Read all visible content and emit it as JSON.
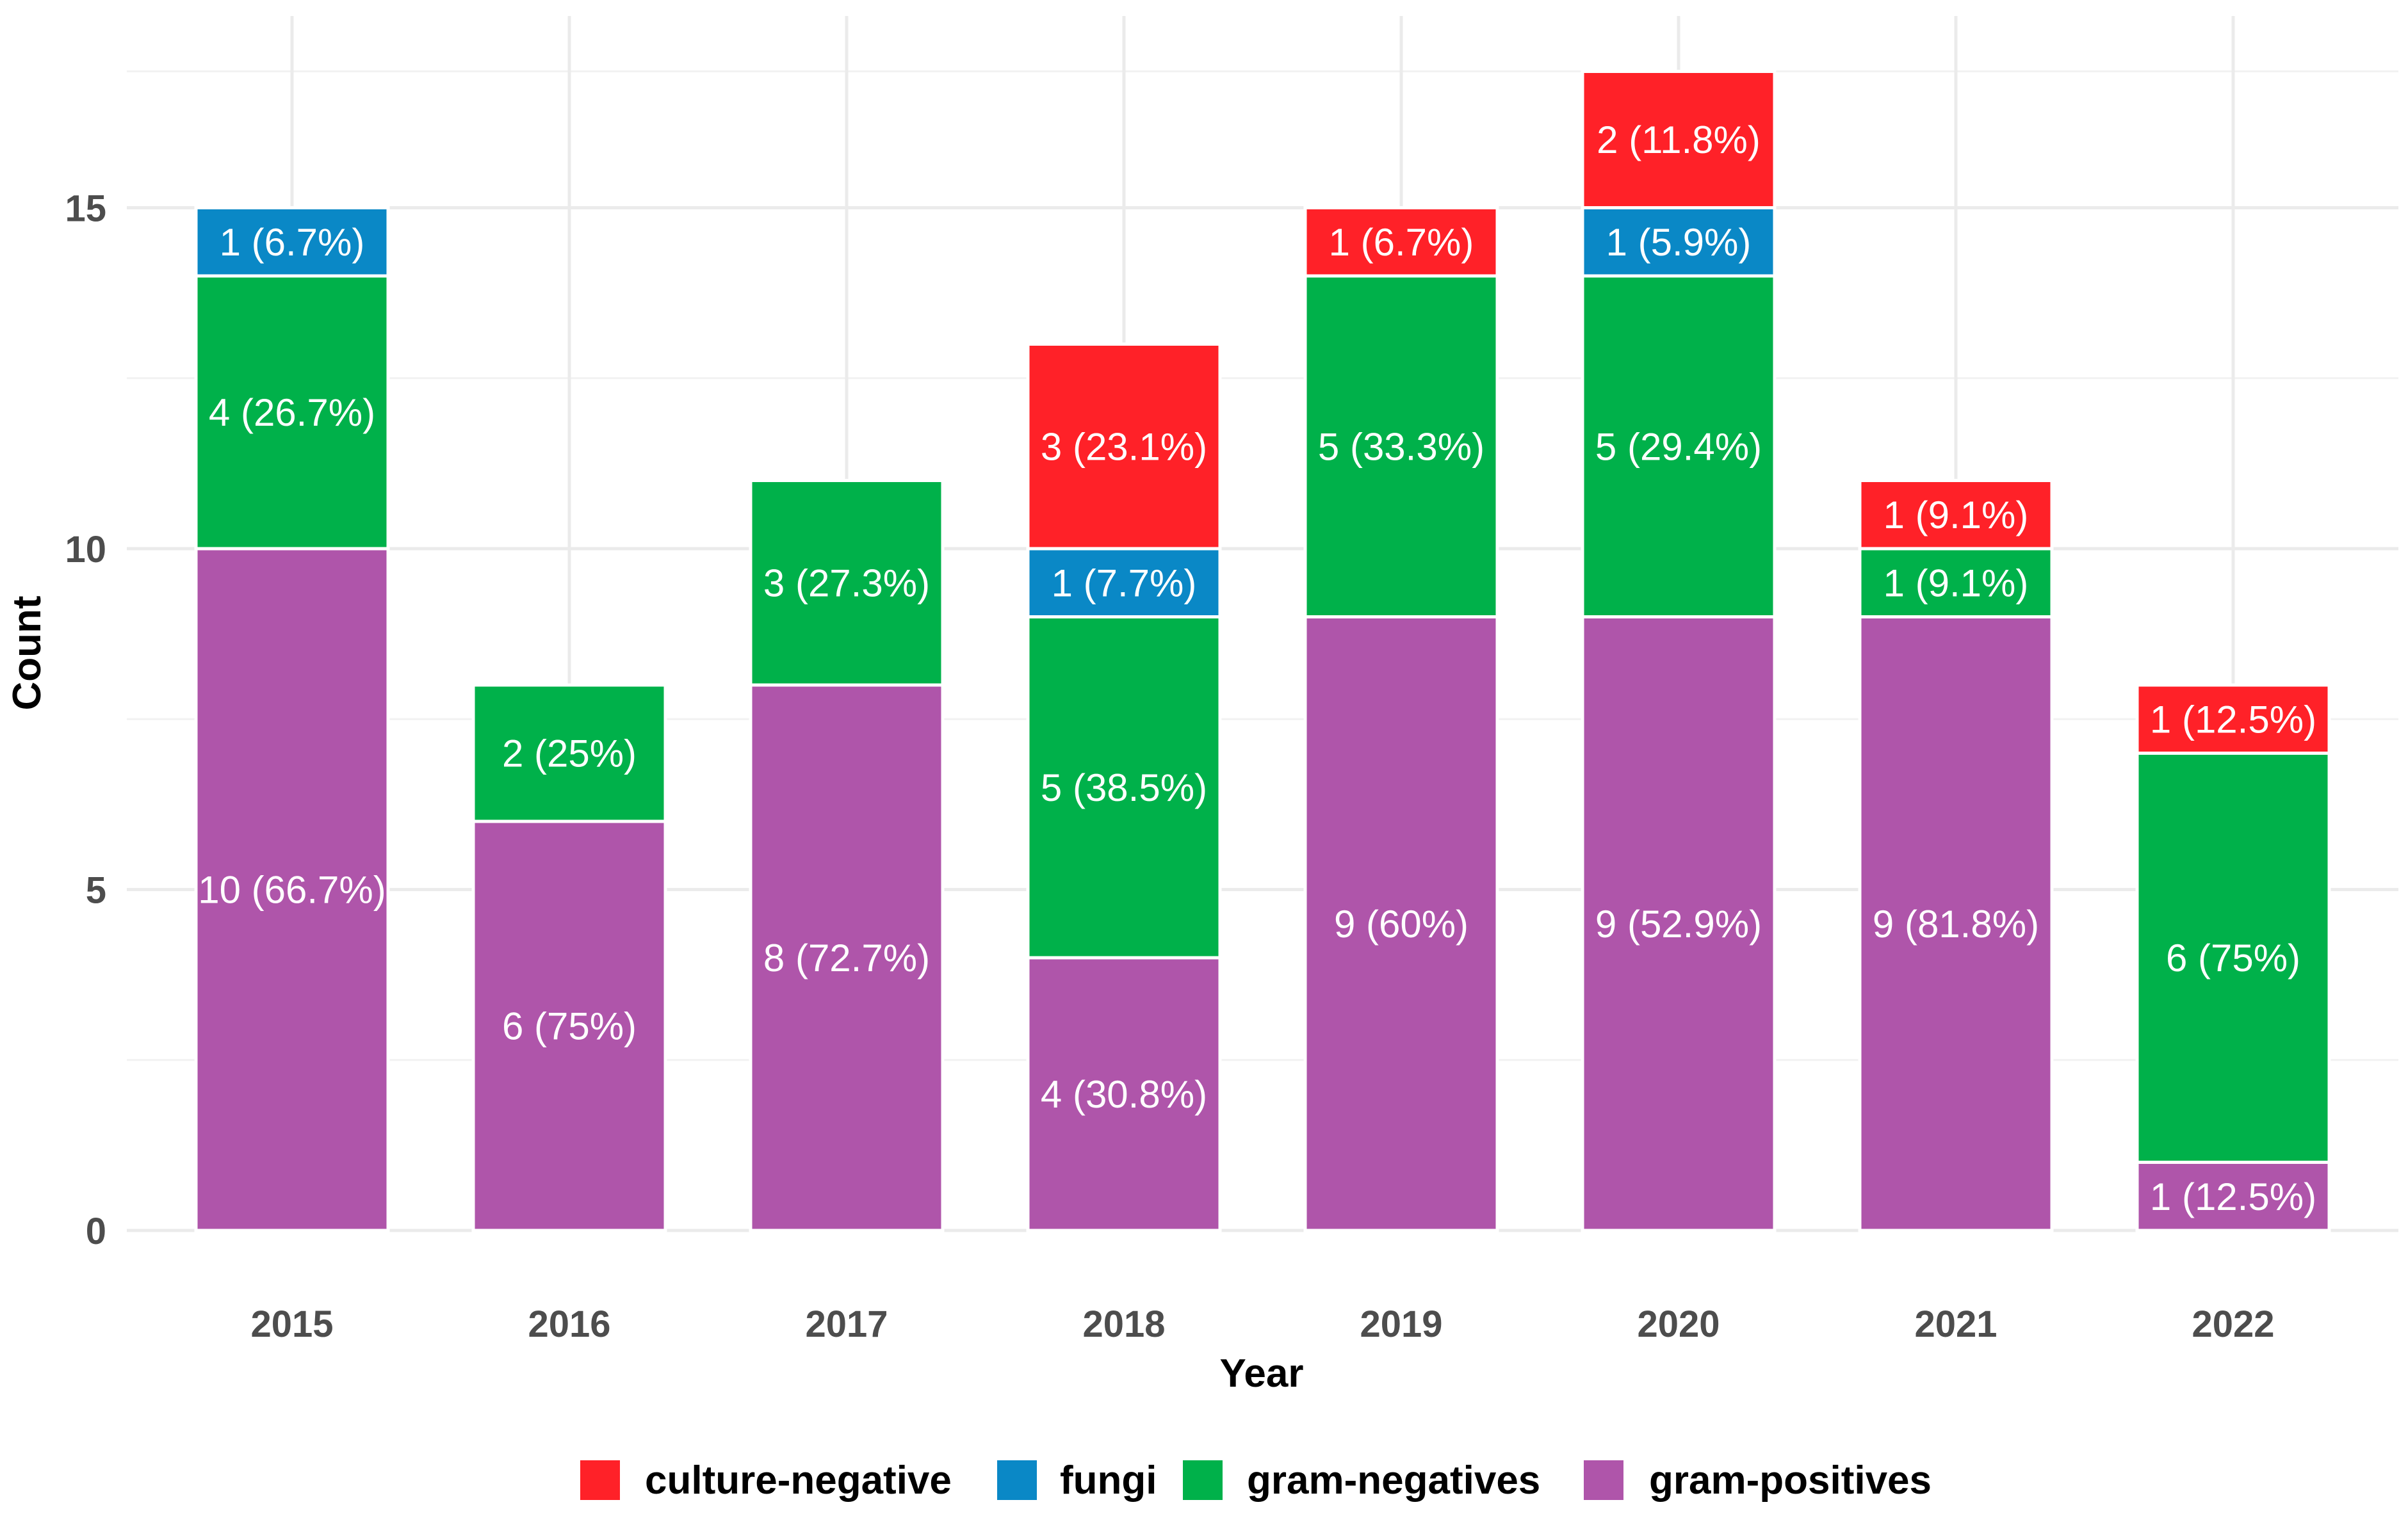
{
  "chart_data": {
    "type": "bar",
    "stacked": true,
    "title": "",
    "xlabel": "Year",
    "ylabel": "Count",
    "ylim": [
      0,
      17.4
    ],
    "y_ticks": [
      "0",
      "5",
      "10",
      "15"
    ],
    "categories": [
      "2015",
      "2016",
      "2017",
      "2018",
      "2019",
      "2020",
      "2021",
      "2022"
    ],
    "series": [
      {
        "name": "gram-positives",
        "color": "#AF55AA",
        "values": [
          10,
          6,
          8,
          4,
          9,
          9,
          9,
          1
        ],
        "labels": [
          "10 (66.7%)",
          "6 (75%)",
          "8 (72.7%)",
          "4 (30.8%)",
          "9 (60%)",
          "9 (52.9%)",
          "9 (81.8%)",
          "1 (12.5%)"
        ]
      },
      {
        "name": "gram-negatives",
        "color": "#00B14A",
        "values": [
          4,
          2,
          3,
          5,
          5,
          5,
          1,
          6
        ],
        "labels": [
          "4 (26.7%)",
          "2 (25%)",
          "3 (27.3%)",
          "5 (38.5%)",
          "5 (33.3%)",
          "5 (29.4%)",
          "1 (9.1%)",
          "6 (75%)"
        ]
      },
      {
        "name": "fungi",
        "color": "#0A88C6",
        "values": [
          1,
          0,
          0,
          1,
          0,
          1,
          0,
          0
        ],
        "labels": [
          "1 (6.7%)",
          "",
          "",
          "1 (7.7%)",
          "",
          "1 (5.9%)",
          "",
          ""
        ]
      },
      {
        "name": "culture-negative",
        "color": "#FF2128",
        "values": [
          0,
          0,
          0,
          3,
          1,
          2,
          1,
          1
        ],
        "labels": [
          "",
          "",
          "",
          "3 (23.1%)",
          "1 (6.7%)",
          "2 (11.8%)",
          "1 (9.1%)",
          "1 (12.5%)"
        ]
      }
    ],
    "legend": {
      "position": "bottom",
      "entries": [
        "culture-negative",
        "fungi",
        "gram-negatives",
        "gram-positives"
      ]
    },
    "grid": true
  }
}
